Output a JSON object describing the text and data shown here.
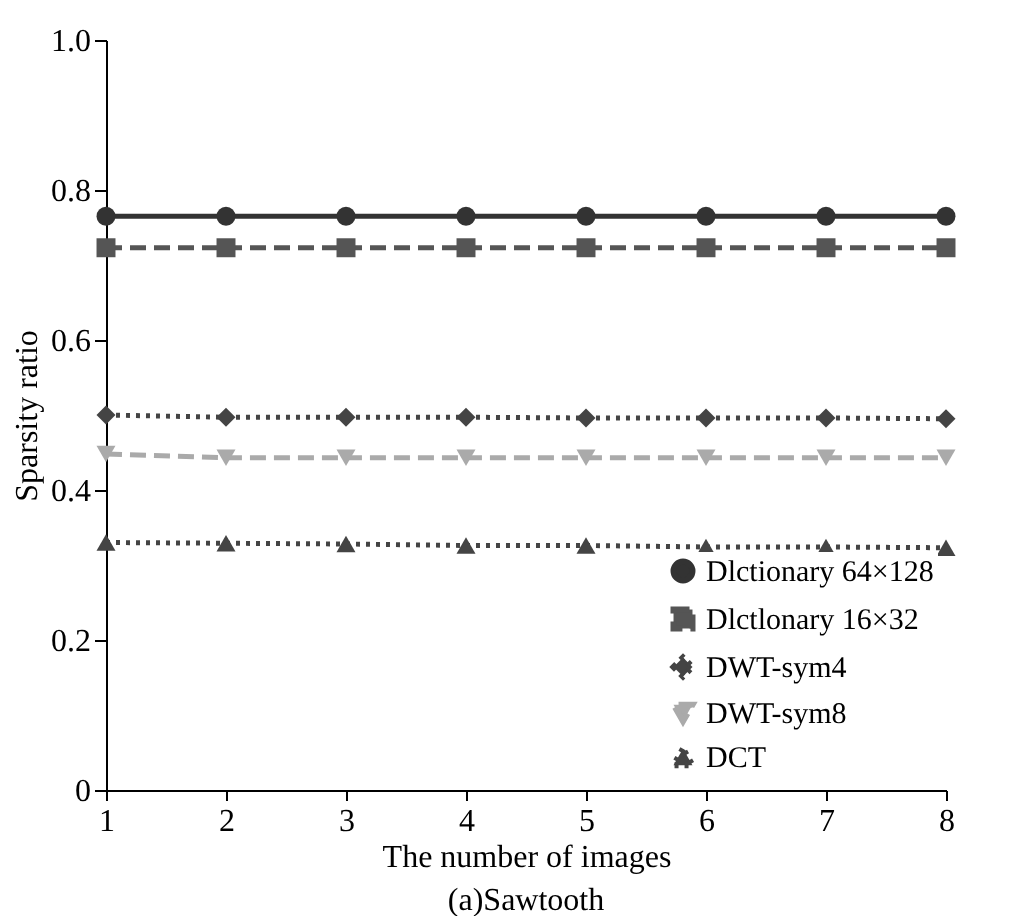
{
  "chart_data": {
    "type": "line",
    "xlabel": "The number of images",
    "ylabel": "Sparsity ratio",
    "annotations": [
      "(a)Sawtooth"
    ],
    "x": [
      1,
      2,
      3,
      4,
      5,
      6,
      7,
      8
    ],
    "xlim": [
      1,
      8
    ],
    "xticks": [
      1,
      2,
      3,
      4,
      5,
      6,
      7,
      8
    ],
    "ylim": [
      0,
      1
    ],
    "yticks": [
      0,
      {
        "value": 0.2,
        "label": "0.2"
      },
      {
        "value": 0.4,
        "label": "0.4"
      },
      {
        "value": 0.6,
        "label": "0.6"
      },
      {
        "value": 0.8,
        "label": "0.8"
      },
      {
        "value": 1,
        "label": "1.0"
      }
    ],
    "grid": false,
    "legend": "bottom right",
    "series": [
      {
        "name": "Dlctionary 64×128",
        "color": "#333333",
        "marker": "circle",
        "line_style": "solid",
        "values": [
          0.765,
          0.765,
          0.765,
          0.765,
          0.765,
          0.765,
          0.765,
          0.765
        ]
      },
      {
        "name": "Dlctlonary 16×32",
        "color": "#555555",
        "marker": "square",
        "line_style": "dashed",
        "values": [
          0.723,
          0.723,
          0.723,
          0.723,
          0.723,
          0.723,
          0.723,
          0.723
        ]
      },
      {
        "name": "DWT-sym4",
        "color": "#444444",
        "marker": "diamond",
        "line_style": "dotted",
        "values": [
          0.5,
          0.497,
          0.497,
          0.497,
          0.496,
          0.496,
          0.496,
          0.495
        ]
      },
      {
        "name": "DWT-sym8",
        "color": "#aaaaaa",
        "marker": "triangle-down",
        "line_style": "dashed",
        "values": [
          0.448,
          0.443,
          0.443,
          0.443,
          0.443,
          0.443,
          0.443,
          0.443
        ]
      },
      {
        "name": "DCT",
        "color": "#444444",
        "marker": "triangle",
        "line_style": "dotted",
        "values": [
          0.33,
          0.329,
          0.328,
          0.326,
          0.326,
          0.324,
          0.324,
          0.323
        ]
      }
    ]
  }
}
